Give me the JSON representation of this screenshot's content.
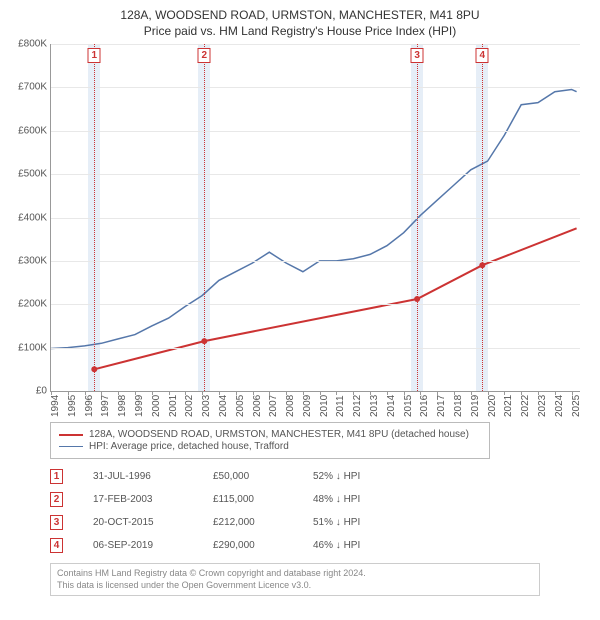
{
  "title": {
    "line1": "128A, WOODSEND ROAD, URMSTON, MANCHESTER, M41 8PU",
    "line2": "Price paid vs. HM Land Registry's House Price Index (HPI)"
  },
  "chart": {
    "type": "line",
    "background_color": "#ffffff",
    "grid_color": "#e8e8e8",
    "axis_color": "#999999",
    "text_color": "#555555",
    "x_rotation_deg": -90,
    "title_fontsize": 12,
    "tick_fontsize": 10,
    "ylim": [
      0,
      800000
    ],
    "ytick_step": 100000,
    "y_tick_labels": [
      "£0",
      "£100K",
      "£200K",
      "£300K",
      "£400K",
      "£500K",
      "£600K",
      "£700K",
      "£800K"
    ],
    "xlim": [
      1994,
      2025.5
    ],
    "x_ticks": [
      1994,
      1995,
      1996,
      1997,
      1998,
      1999,
      2000,
      2001,
      2002,
      2003,
      2004,
      2005,
      2006,
      2007,
      2008,
      2009,
      2010,
      2011,
      2012,
      2013,
      2014,
      2015,
      2016,
      2017,
      2018,
      2019,
      2020,
      2021,
      2022,
      2023,
      2024,
      2025
    ],
    "marker_band_color": "#e6eef7",
    "marker_line_color": "#cc3333",
    "marker_band_half_width_years": 0.35,
    "series": [
      {
        "name": "price_paid",
        "label": "128A, WOODSEND ROAD, URMSTON, MANCHESTER, M41 8PU (detached house)",
        "color": "#cc3333",
        "line_width": 2,
        "x": [
          1996.58,
          2003.13,
          2015.8,
          2019.68,
          2025.3
        ],
        "y": [
          50000,
          115000,
          212000,
          290000,
          375000
        ],
        "markers_at_index": [
          0,
          1,
          2,
          3
        ],
        "marker_radius": 3
      },
      {
        "name": "hpi",
        "label": "HPI: Average price, detached house, Trafford",
        "color": "#5577aa",
        "line_width": 1.5,
        "x": [
          1994,
          1995,
          1996,
          1997,
          1998,
          1999,
          2000,
          2001,
          2002,
          2003,
          2004,
          2005,
          2006,
          2007,
          2008,
          2009,
          2010,
          2011,
          2012,
          2013,
          2014,
          2015,
          2016,
          2017,
          2018,
          2019,
          2020,
          2021,
          2022,
          2023,
          2024,
          2025,
          2025.3
        ],
        "y": [
          98000,
          100000,
          104000,
          110000,
          120000,
          130000,
          150000,
          168000,
          195000,
          220000,
          255000,
          275000,
          295000,
          320000,
          295000,
          275000,
          300000,
          300000,
          305000,
          315000,
          335000,
          365000,
          405000,
          440000,
          475000,
          510000,
          530000,
          590000,
          660000,
          665000,
          690000,
          695000,
          690000
        ]
      }
    ],
    "callouts": [
      {
        "n": "1",
        "x": 1996.58
      },
      {
        "n": "2",
        "x": 2003.13
      },
      {
        "n": "3",
        "x": 2015.8
      },
      {
        "n": "4",
        "x": 2019.68
      }
    ]
  },
  "legend": {
    "items": [
      {
        "color": "#cc3333",
        "label": "128A, WOODSEND ROAD, URMSTON, MANCHESTER, M41 8PU (detached house)"
      },
      {
        "color": "#5577aa",
        "label": "HPI: Average price, detached house, Trafford"
      }
    ]
  },
  "table": {
    "rows": [
      {
        "n": "1",
        "date": "31-JUL-1996",
        "price": "£50,000",
        "pct": "52% ↓ HPI"
      },
      {
        "n": "2",
        "date": "17-FEB-2003",
        "price": "£115,000",
        "pct": "48% ↓ HPI"
      },
      {
        "n": "3",
        "date": "20-OCT-2015",
        "price": "£212,000",
        "pct": "51% ↓ HPI"
      },
      {
        "n": "4",
        "date": "06-SEP-2019",
        "price": "£290,000",
        "pct": "46% ↓ HPI"
      }
    ]
  },
  "footer": {
    "line1": "Contains HM Land Registry data © Crown copyright and database right 2024.",
    "line2": "This data is licensed under the Open Government Licence v3.0."
  }
}
